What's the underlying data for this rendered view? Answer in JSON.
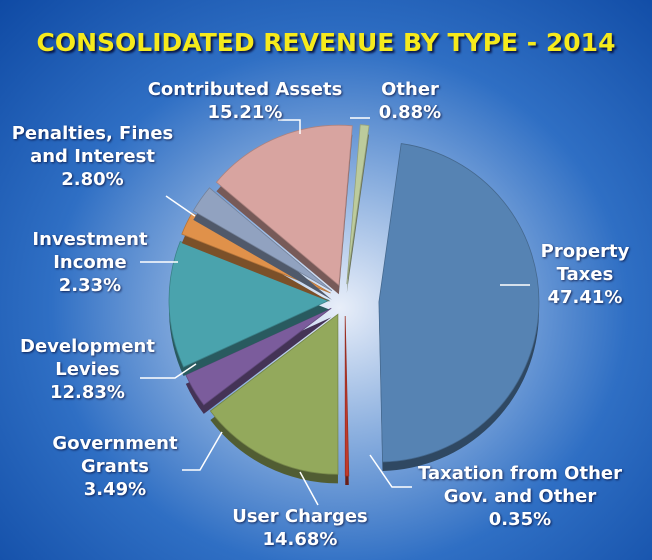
{
  "chart_data": {
    "type": "pie",
    "title": "CONSOLIDATED REVENUE BY TYPE - 2014",
    "categories": [
      "Property Taxes",
      "Taxation from Other Gov. and Other",
      "User Charges",
      "Government Grants",
      "Development Levies",
      "Investment Income",
      "Penalties, Fines and Interest",
      "Contributed Assets",
      "Other"
    ],
    "values": [
      47.41,
      0.35,
      14.68,
      3.49,
      12.83,
      2.33,
      2.8,
      15.21,
      0.88
    ],
    "value_labels": [
      "47.41%",
      "0.35%",
      "14.68%",
      "3.49%",
      "12.83%",
      "2.33%",
      "2.80%",
      "15.21%",
      "0.88%"
    ],
    "colors": [
      "#5683b3",
      "#c0392b",
      "#93a95c",
      "#7b5c9c",
      "#4aa3ad",
      "#e0914a",
      "#91a2c0",
      "#d8a4a0",
      "#bccb9c"
    ]
  }
}
